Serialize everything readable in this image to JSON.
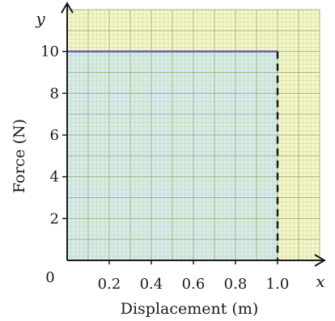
{
  "chart_data": {
    "type": "area",
    "title": "",
    "xlabel": "Displacement (m)",
    "ylabel": "Force (N)",
    "x_axis_letter": "x",
    "y_axis_letter": "y",
    "origin_label": "0",
    "xlim": [
      0,
      1.2
    ],
    "ylim": [
      0,
      12
    ],
    "x_ticks": [
      0.2,
      0.4,
      0.6,
      0.8,
      1.0
    ],
    "x_tick_labels": [
      "0.2",
      "0.4",
      "0.6",
      "0.8",
      "1.0"
    ],
    "y_ticks": [
      2,
      4,
      6,
      8,
      10
    ],
    "y_tick_labels": [
      "2",
      "4",
      "6",
      "8",
      "10"
    ],
    "grid": true,
    "series": [
      {
        "x": [
          0,
          1.0
        ],
        "y": [
          10,
          10
        ]
      }
    ],
    "drop_line_x": 1.0,
    "colors": {
      "paper": "#f6f7c8",
      "grid_minor": "#c9d3a0",
      "grid_major": "#a6b27c",
      "area_fill": "#cfeaf3",
      "series_line": "#6a5fa8",
      "axis": "#1a1a1a"
    }
  }
}
